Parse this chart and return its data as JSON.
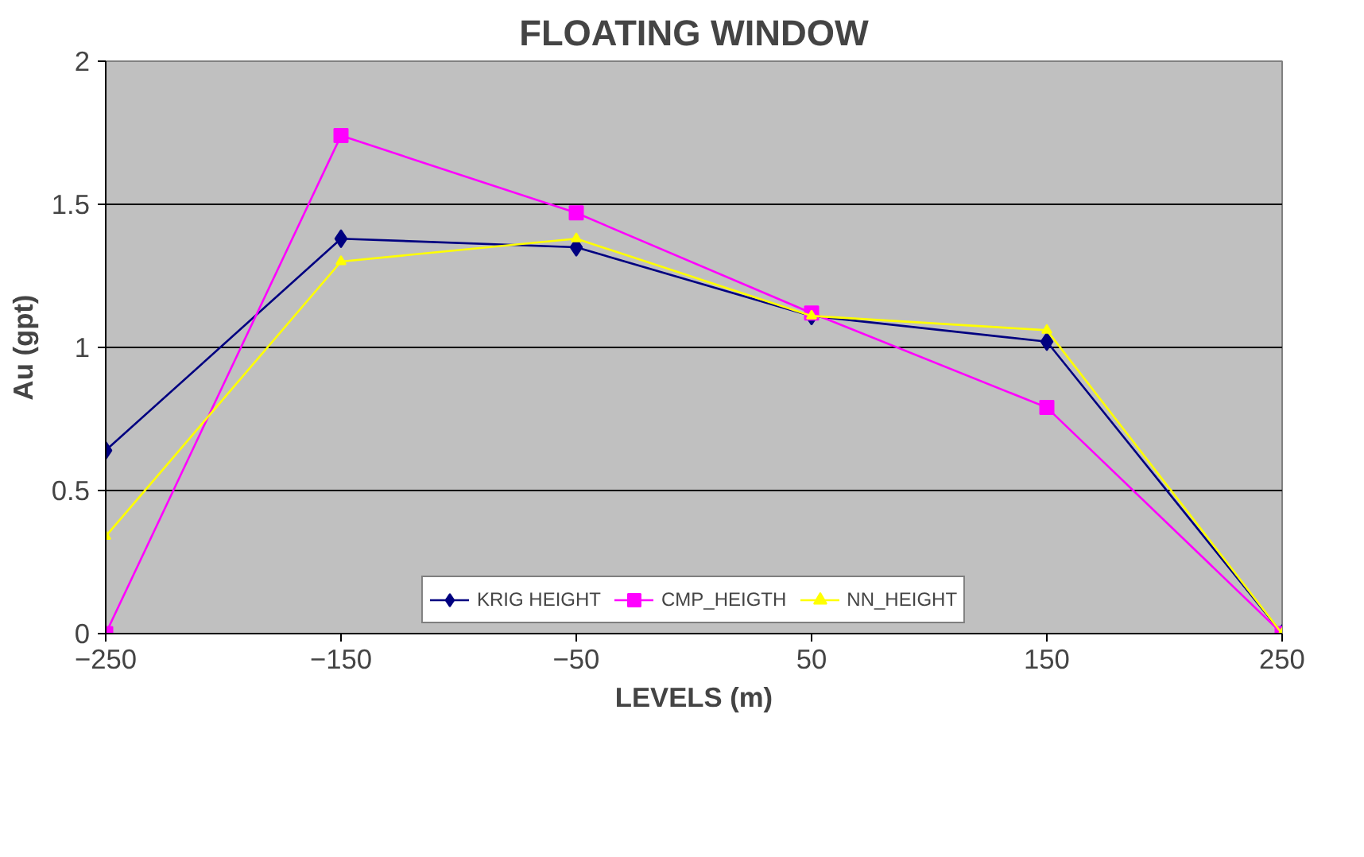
{
  "chart_data": {
    "type": "line",
    "title": "FLOATING WINDOW",
    "xlabel": "LEVELS (m)",
    "ylabel": "Au (gpt)",
    "x": [
      -250,
      -150,
      -50,
      50,
      150,
      250
    ],
    "xlim": [
      -250,
      250
    ],
    "xticks": [
      -250,
      -150,
      -50,
      50,
      150,
      250
    ],
    "ylim": [
      0,
      2
    ],
    "yticks": [
      0,
      0.5,
      1,
      1.5,
      2
    ],
    "grid": "y",
    "legend": "bottom",
    "line_style": "solid",
    "series": [
      {
        "name": "KRIG HEIGHT",
        "color": "#000080",
        "marker": "diamond",
        "values": [
          0.64,
          1.38,
          1.35,
          1.11,
          1.02,
          0
        ]
      },
      {
        "name": "CMP_HEIGTH",
        "color": "#ff00ff",
        "marker": "square",
        "values": [
          0,
          1.74,
          1.47,
          1.12,
          0.79,
          0
        ]
      },
      {
        "name": "NN_HEIGHT",
        "color": "#ffff00",
        "marker": "triangle",
        "values": [
          0.34,
          1.3,
          1.38,
          1.11,
          1.06,
          0
        ]
      }
    ]
  }
}
